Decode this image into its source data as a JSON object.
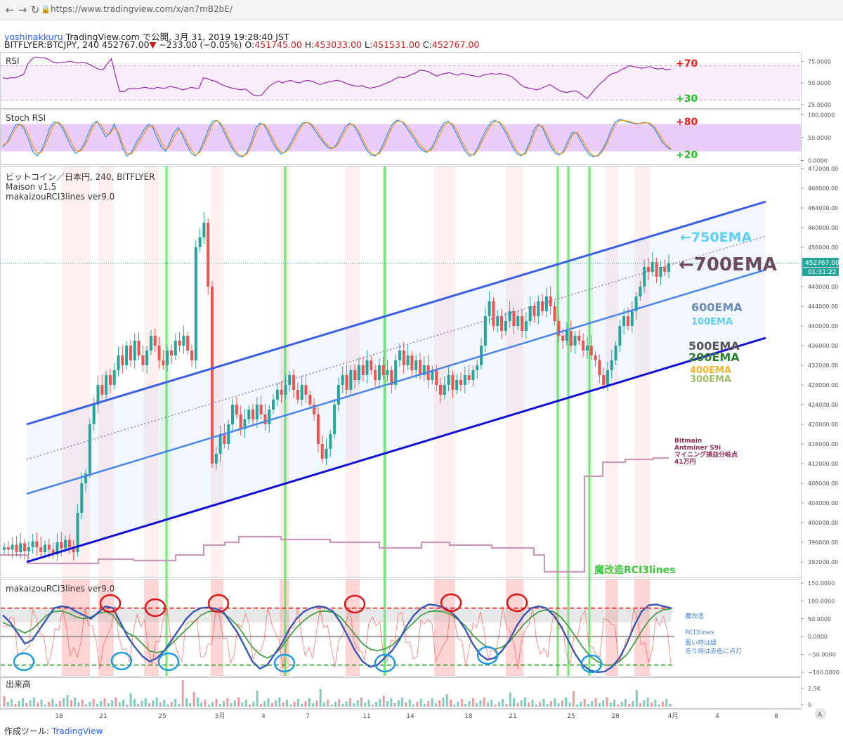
{
  "browser": {
    "url": "https://www.tradingview.com/x/an7mB2bE/",
    "back_glyph": "←",
    "forward_glyph": "→",
    "reload_glyph": "↻",
    "lock_glyph": "🔒"
  },
  "header": {
    "user": "yoshinakkuru",
    "published": "TradingView.com で公開, 3月 31, 2019 19:28:40 JST",
    "symbol": "BITFLYER:BTCJPY, 240",
    "last": "452767.00",
    "change_arrow": "▼",
    "change": "−233.00 (−0.05%)",
    "o_label": "O:",
    "o": "451745.00",
    "h_label": "H:",
    "h": "453033.00",
    "l_label": "L:",
    "l": "451531.00",
    "c_label": "C:",
    "c": "452767.00"
  },
  "colors": {
    "up": "#26a69a",
    "down": "#ef5350",
    "rsi": "#9c27b0",
    "channel": "#1c3fe0",
    "channel_mid": "#4a86e8",
    "signal_red": "#ff0000",
    "signal_green": "#00c800"
  },
  "chart_data": [
    {
      "type": "line",
      "panel": "RSI",
      "title": "RSI",
      "levels": [
        "+70",
        "+30"
      ],
      "ylim": [
        20,
        85
      ],
      "yticks": [
        "75.0000",
        "50.0000",
        "25.0000"
      ],
      "series": [
        {
          "values": [
            56,
            55,
            56,
            56,
            58,
            60,
            72,
            78,
            80,
            79,
            79,
            77,
            74,
            73,
            74,
            74,
            75,
            74,
            73,
            74,
            73,
            71,
            68,
            66,
            65,
            72,
            78,
            58,
            40,
            40,
            43,
            44,
            43,
            44,
            45,
            44,
            43,
            45,
            44,
            44,
            46,
            45,
            44,
            42,
            43,
            45,
            44,
            44,
            56,
            55,
            53,
            52,
            49,
            47,
            45,
            44,
            43,
            42,
            43,
            40,
            36,
            35,
            36,
            42,
            47,
            50,
            52,
            50,
            52,
            53,
            51,
            50,
            52,
            53,
            52,
            50,
            48,
            50,
            51,
            52,
            53,
            52,
            50,
            48,
            47,
            46,
            47,
            45,
            44,
            45,
            46,
            48,
            50,
            52,
            55,
            57,
            56,
            58,
            60,
            62,
            65,
            64,
            63,
            60,
            58,
            60,
            61,
            62,
            60,
            59,
            61,
            60,
            59,
            58,
            57,
            59,
            60,
            61,
            60,
            61,
            60,
            59,
            57,
            53,
            48,
            45,
            44,
            43,
            42,
            44,
            46,
            48,
            45,
            42,
            40,
            39,
            40,
            41,
            39,
            35,
            32,
            38,
            44,
            49,
            53,
            58,
            61,
            62,
            65,
            67,
            70,
            69,
            68,
            67,
            68,
            69,
            67,
            66,
            67,
            65,
            66
          ]
        }
      ]
    },
    {
      "type": "line",
      "panel": "Stoch RSI",
      "title": "Stoch RSI",
      "levels": [
        "+80",
        "+20"
      ],
      "ylim": [
        -10,
        110
      ],
      "yticks": [
        "100.0000",
        "50.0000",
        "0.0000"
      ],
      "series": [
        {
          "values": [
            30,
            40,
            60,
            78,
            80,
            68,
            46,
            20,
            10,
            22,
            45,
            72,
            85,
            82,
            70,
            50,
            30,
            16,
            22,
            36,
            60,
            80,
            86,
            70,
            52,
            60,
            80,
            56,
            26,
            10,
            18,
            36,
            52,
            68,
            80,
            72,
            50,
            30,
            20,
            40,
            62,
            72,
            54,
            34,
            16,
            10,
            22,
            44,
            68,
            86,
            88,
            76,
            56,
            36,
            20,
            10,
            8,
            18,
            40,
            70,
            82,
            78,
            60,
            40,
            24,
            14,
            20,
            34,
            52,
            70,
            82,
            84,
            78,
            64,
            50,
            38,
            28,
            26,
            36,
            56,
            74,
            82,
            76,
            60,
            40,
            22,
            12,
            10,
            20,
            40,
            62,
            80,
            88,
            86,
            76,
            62,
            48,
            32,
            22,
            18,
            26,
            44,
            66,
            82,
            86,
            76,
            58,
            38,
            20,
            10,
            14,
            30,
            52,
            70,
            84,
            88,
            82,
            68,
            50,
            30,
            16,
            10,
            18,
            40,
            66,
            80,
            72,
            50,
            30,
            16,
            12,
            22,
            44,
            62,
            60,
            42,
            26,
            12,
            8,
            12,
            24,
            42,
            66,
            84,
            90,
            88,
            84,
            82,
            80,
            82,
            84,
            80,
            72,
            56,
            40,
            30,
            24
          ]
        },
        {
          "values": [
            34,
            38,
            52,
            70,
            80,
            74,
            56,
            32,
            16,
            18,
            36,
            60,
            80,
            84,
            76,
            58,
            40,
            22,
            20,
            30,
            50,
            72,
            84,
            78,
            60,
            58,
            72,
            62,
            36,
            16,
            14,
            28,
            44,
            60,
            74,
            76,
            60,
            40,
            24,
            32,
            52,
            68,
            60,
            42,
            24,
            12,
            18,
            36,
            58,
            80,
            88,
            80,
            64,
            44,
            26,
            14,
            10,
            14,
            32,
            58,
            78,
            80,
            68,
            48,
            30,
            18,
            18,
            28,
            44,
            62,
            78,
            84,
            80,
            70,
            56,
            42,
            32,
            26,
            32,
            48,
            66,
            80,
            78,
            66,
            48,
            28,
            16,
            12,
            16,
            32,
            54,
            74,
            86,
            86,
            80,
            68,
            54,
            40,
            28,
            20,
            22,
            36,
            56,
            76,
            84,
            80,
            66,
            46,
            28,
            14,
            12,
            24,
            44,
            62,
            78,
            86,
            84,
            74,
            58,
            38,
            22,
            12,
            14,
            32,
            56,
            76,
            76,
            58,
            38,
            22,
            14,
            18,
            36,
            56,
            62,
            50,
            34,
            18,
            10,
            10,
            20,
            36,
            58,
            78,
            88,
            88,
            86,
            83,
            81,
            81,
            83,
            82,
            76,
            62,
            46,
            34,
            26
          ]
        }
      ]
    },
    {
      "type": "candlestick",
      "panel": "main",
      "title": "ビットコイン／日本円, 240, BITFLYER",
      "indicators": [
        "Maison v1.5",
        "makaizouRCI3lines ver9.0"
      ],
      "ylim": [
        388000,
        473000
      ],
      "yticks": [
        "472000.00",
        "468000.00",
        "464000.00",
        "460000.00",
        "456000.00",
        "452000.00",
        "448000.00",
        "444000.00",
        "440000.00",
        "436000.00",
        "432000.00",
        "428000.00",
        "424000.00",
        "420000.00",
        "416000.00",
        "412000.00",
        "408000.00",
        "404000.00",
        "400000.00",
        "396000.00",
        "392000.00"
      ],
      "xticks": [
        {
          "label": "18",
          "x": 84
        },
        {
          "label": "21",
          "x": 147
        },
        {
          "label": "25",
          "x": 231
        },
        {
          "label": "3月",
          "x": 313
        },
        {
          "label": "4",
          "x": 375
        },
        {
          "label": "7",
          "x": 438
        },
        {
          "label": "11",
          "x": 522
        },
        {
          "label": "14",
          "x": 584
        },
        {
          "label": "18",
          "x": 667
        },
        {
          "label": "21",
          "x": 730
        },
        {
          "label": "25",
          "x": 813
        },
        {
          "label": "28",
          "x": 876
        },
        {
          "label": "4月",
          "x": 958
        },
        {
          "label": "4",
          "x": 1021
        },
        {
          "label": "8",
          "x": 1105
        }
      ],
      "last_price": "452767.00",
      "countdown": "01:31:22",
      "close": [
        395000,
        394500,
        395500,
        394000,
        395800,
        394200,
        395000,
        396200,
        395000,
        394000,
        395500,
        394500,
        393500,
        396000,
        394800,
        396500,
        395000,
        394000,
        402000,
        408000,
        410000,
        420000,
        424000,
        428000,
        426000,
        430000,
        428000,
        431000,
        434000,
        432000,
        436000,
        433000,
        437000,
        434000,
        432000,
        435000,
        438000,
        436000,
        433000,
        432000,
        435000,
        434000,
        437000,
        436000,
        438000,
        435000,
        433000,
        456000,
        458000,
        461000,
        448000,
        412000,
        414000,
        418000,
        416000,
        420000,
        424000,
        422000,
        419000,
        421000,
        423000,
        421000,
        424000,
        422000,
        420000,
        423000,
        425000,
        427000,
        426000,
        428000,
        430000,
        427000,
        425000,
        428000,
        426000,
        424000,
        422000,
        416000,
        413000,
        415000,
        418000,
        424000,
        428000,
        430000,
        427000,
        431000,
        429000,
        432000,
        430000,
        433000,
        431000,
        429000,
        432000,
        430000,
        431000,
        428000,
        433000,
        435000,
        432000,
        434000,
        431000,
        433000,
        430000,
        432000,
        429000,
        431000,
        428000,
        426000,
        428000,
        430000,
        427000,
        429000,
        428000,
        430000,
        429000,
        431000,
        432000,
        436000,
        442000,
        445000,
        440000,
        442000,
        439000,
        441000,
        443000,
        440000,
        442000,
        439000,
        441000,
        444000,
        442000,
        445000,
        443000,
        446000,
        444000,
        441000,
        438000,
        437000,
        439000,
        436000,
        438000,
        437000,
        435000,
        436000,
        434000,
        433000,
        430000,
        428000,
        431000,
        433000,
        436000,
        440000,
        442000,
        440000,
        443000,
        446000,
        448000,
        452000,
        451000,
        453000,
        450000,
        452000,
        451000,
        452767
      ],
      "channel": {
        "upper": [
          [
            38,
            604
          ],
          [
            1090,
            287
          ]
        ],
        "middle": [
          [
            38,
            703
          ],
          [
            1090,
            384
          ]
        ],
        "lower": [
          [
            38,
            800
          ],
          [
            1090,
            481
          ]
        ]
      },
      "annotations": [
        "←750EMA",
        "←700EMA",
        "600EMA",
        "100EMA",
        "500EMA",
        "200EMA",
        "400EMA",
        "300EMA",
        "Bitmain",
        "Antminer S9i",
        "マイニング損益分岐点",
        "41万円",
        "魔改造RCI3lines"
      ]
    },
    {
      "type": "line",
      "panel": "RCI",
      "title": "makaizouRCI3lines ver9.0",
      "ylim": [
        -110,
        160
      ],
      "yticks": [
        "150.0000",
        "100.0000",
        "50.0000",
        "0.0000",
        "−50.0000",
        "−100.0000"
      ],
      "legend": [
        "魔改造",
        "RCI3lines",
        "買い時は緑",
        "売り時は赤色に点灯"
      ]
    },
    {
      "type": "bar",
      "panel": "volume",
      "title": "出来高",
      "yticks": [
        "2.5K",
        "0"
      ]
    }
  ],
  "footer": {
    "made_with": "作成ツール:",
    "brand": "TradingView"
  }
}
